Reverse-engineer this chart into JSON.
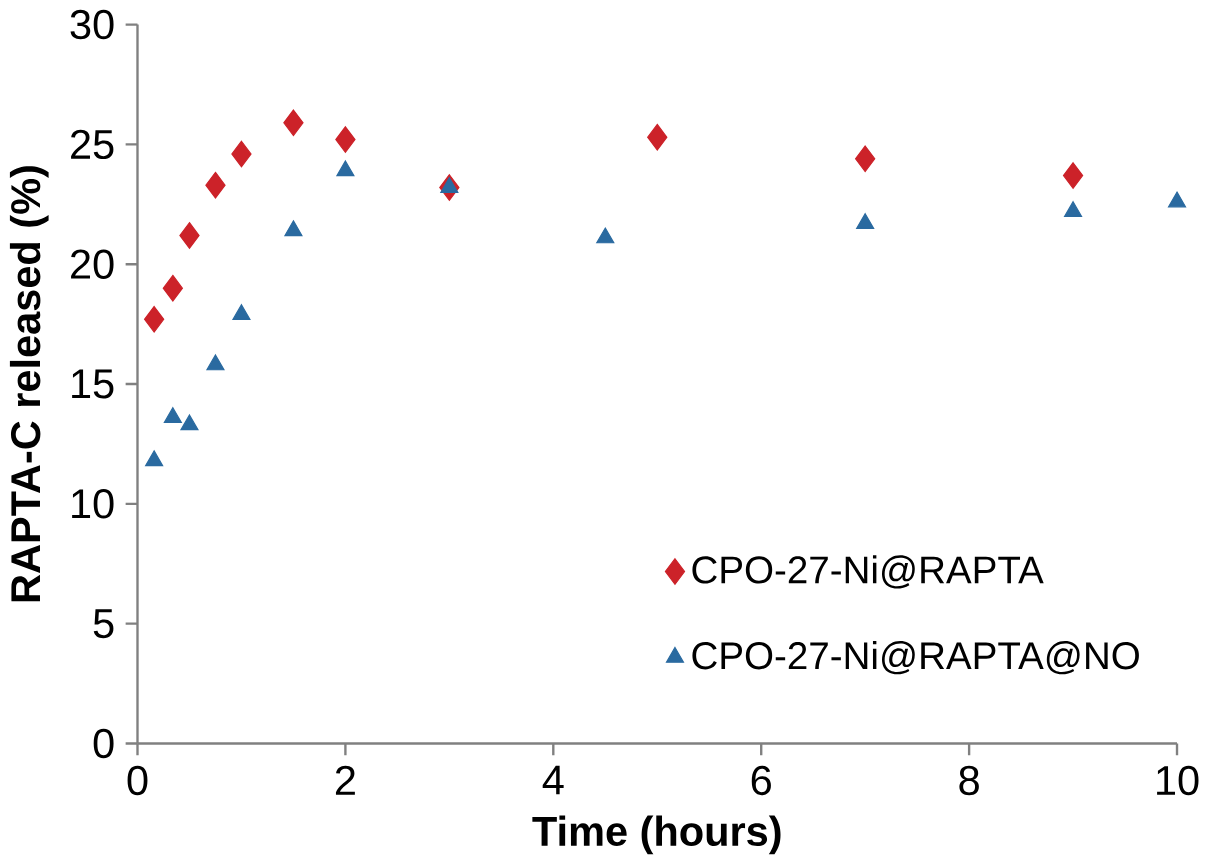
{
  "chart_data": {
    "type": "scatter",
    "xlabel": "Time (hours)",
    "ylabel": "RAPTA-C released (%)",
    "xlim": [
      0,
      10
    ],
    "ylim": [
      0,
      30
    ],
    "xticks": [
      0,
      2,
      4,
      6,
      8,
      10
    ],
    "yticks": [
      0,
      5,
      10,
      15,
      20,
      25,
      30
    ],
    "grid": false,
    "legend": "bottom right",
    "series": [
      {
        "name": "CPO-27-Ni@RAPTA",
        "color": "#cc2229",
        "marker": "diamond",
        "x": [
          0.16,
          0.34,
          0.5,
          0.75,
          1,
          1.5,
          2,
          3,
          5,
          7,
          9
        ],
        "values": [
          17.7,
          19.0,
          21.2,
          23.3,
          24.6,
          25.9,
          25.2,
          23.2,
          25.3,
          24.4,
          23.7
        ]
      },
      {
        "name": "CPO-27-Ni@RAPTA@NO",
        "color": "#2a6aa0",
        "marker": "triangle",
        "x": [
          0.16,
          0.34,
          0.5,
          0.75,
          1,
          1.5,
          2,
          3,
          4.5,
          7,
          9,
          10
        ],
        "values": [
          11.8,
          13.6,
          13.3,
          15.8,
          17.9,
          21.4,
          23.9,
          23.2,
          21.1,
          21.7,
          22.2,
          22.6
        ]
      }
    ]
  }
}
